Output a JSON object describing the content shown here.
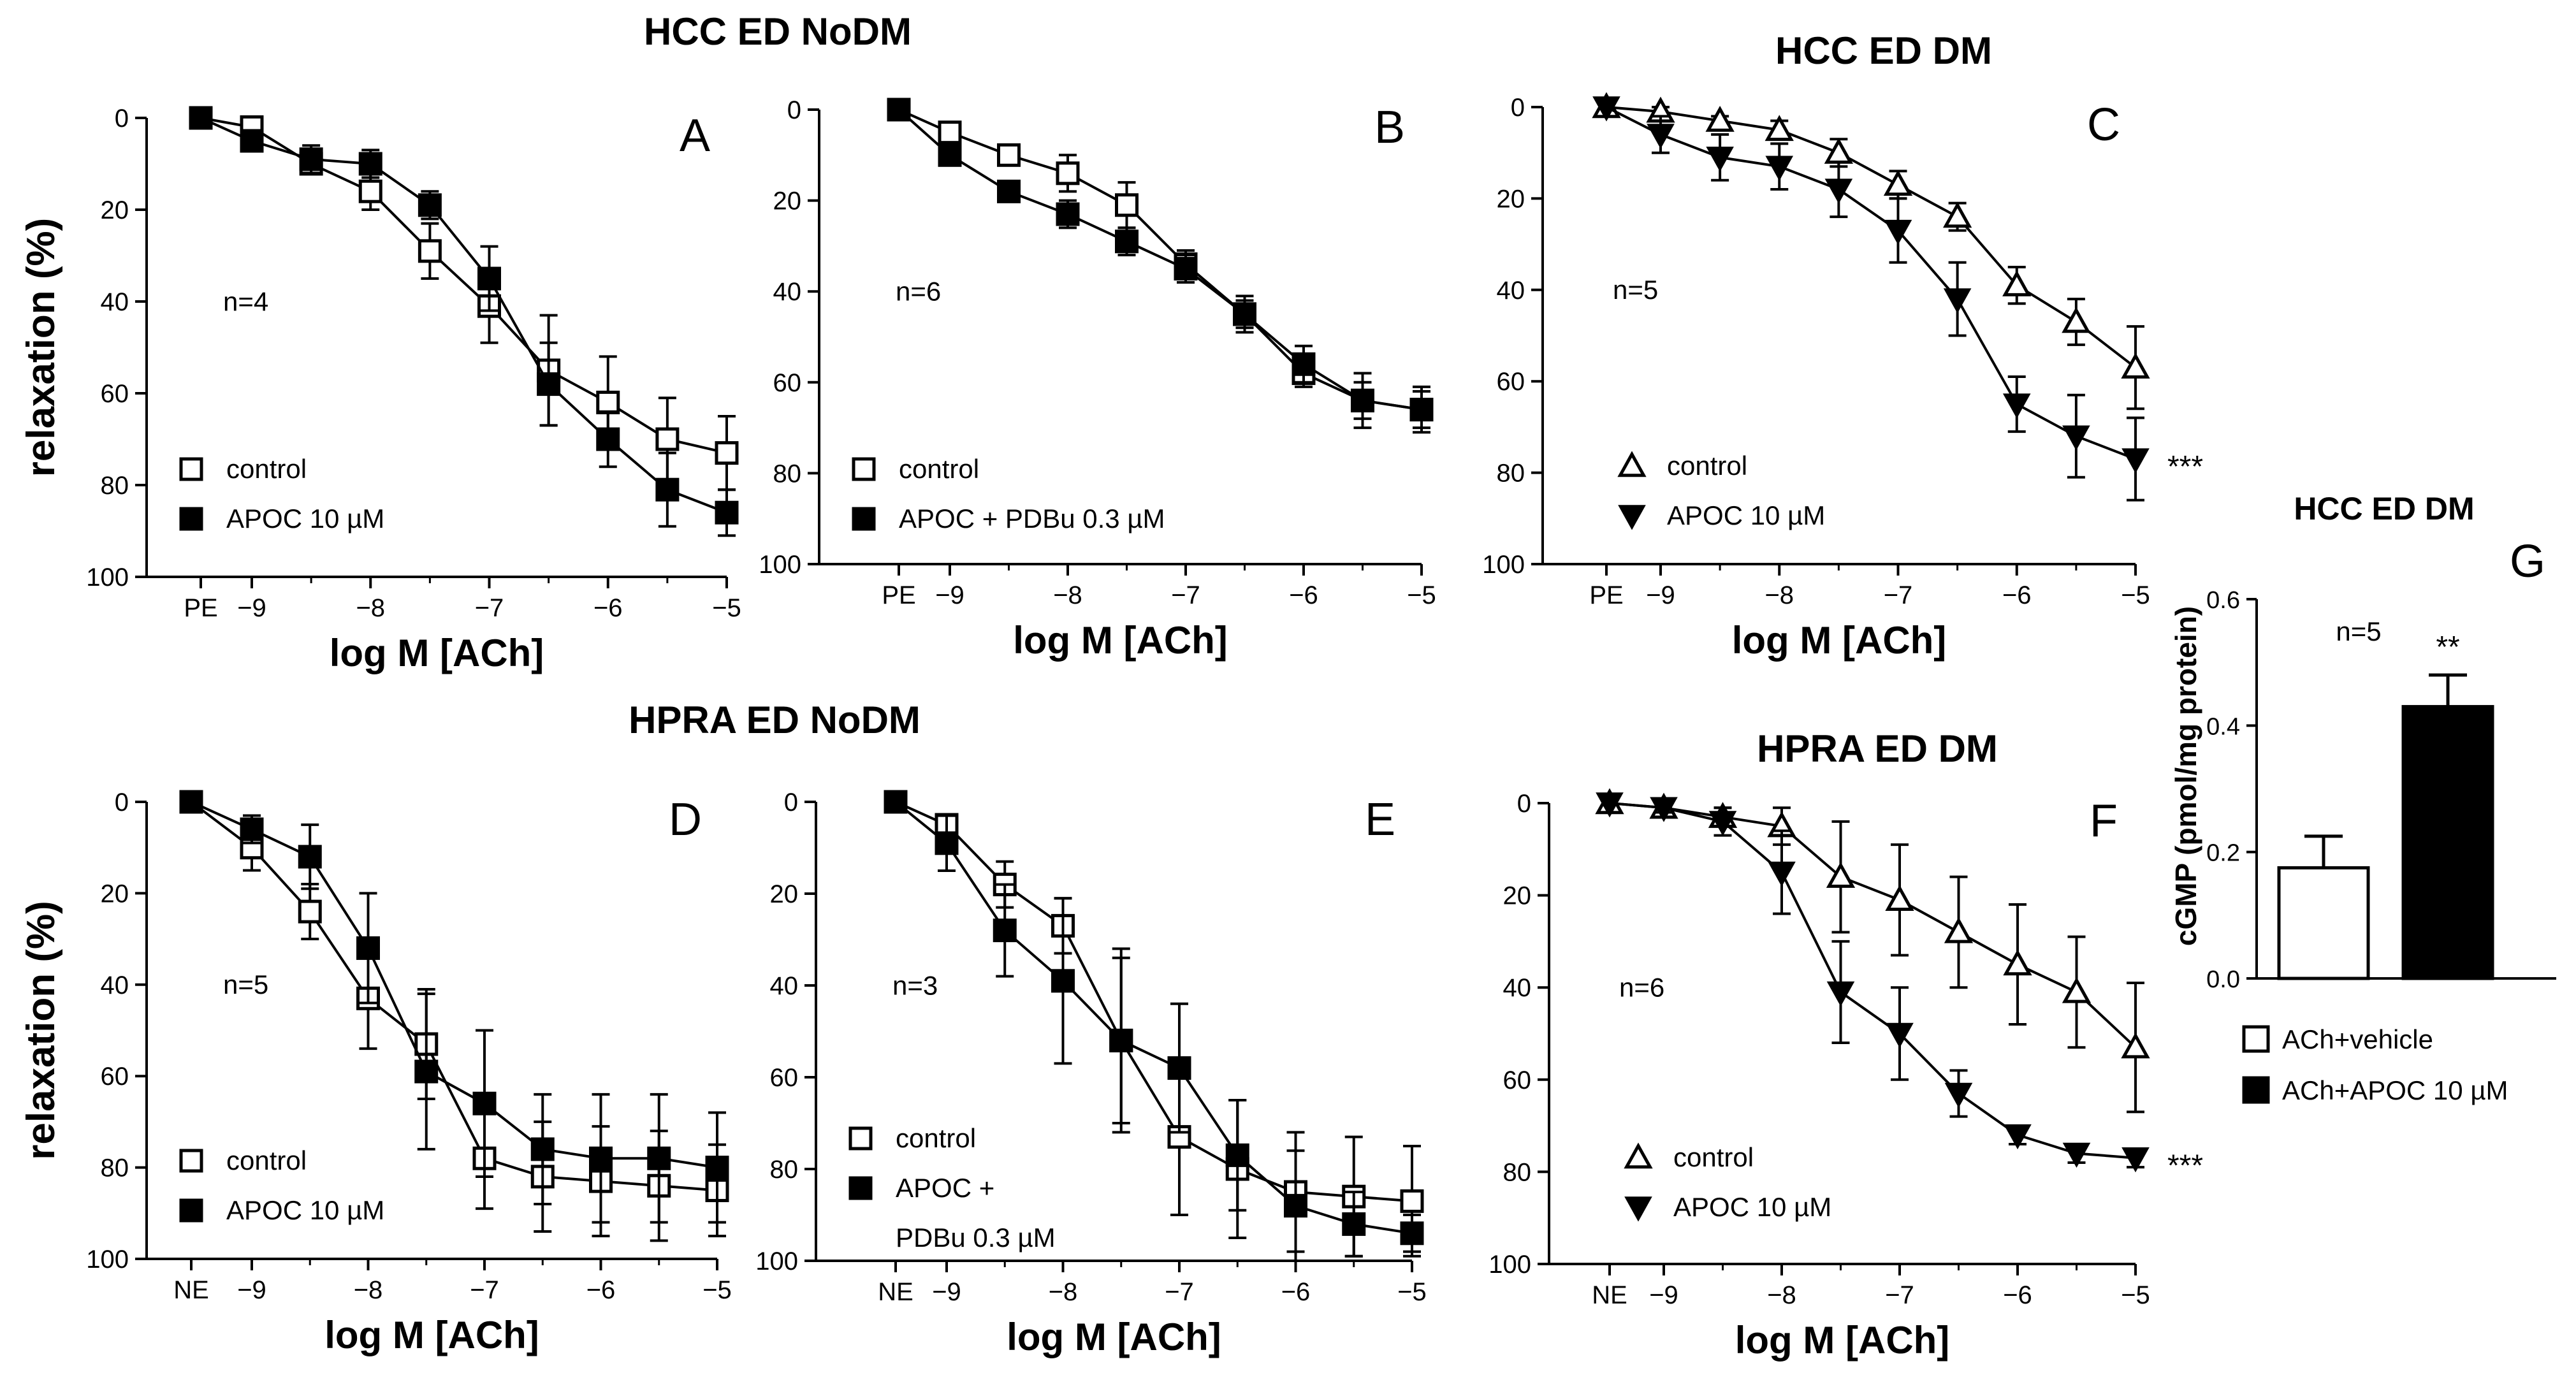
{
  "headers": {
    "hcc_nodm": "HCC ED NoDM",
    "hcc_dm": "HCC ED DM",
    "hpra_nodm": "HPRA ED NoDM",
    "hpra_dm": "HPRA ED DM",
    "g_title": "HCC ED DM"
  },
  "chart_data": [
    {
      "id": "A",
      "type": "line",
      "letter": "A",
      "n_label": "n=4",
      "ylabel": "relaxation (%)",
      "xlabel": "log M [ACh]",
      "ylim": [
        0,
        100
      ],
      "yticks": [
        "0",
        "20",
        "40",
        "60",
        "80",
        "100"
      ],
      "xticks": [
        "PE",
        "−9",
        "−8",
        "−7",
        "−6",
        "−5"
      ],
      "x": [
        "PE",
        -9,
        -8.5,
        -8,
        -7.5,
        -7,
        -6.5,
        -6,
        -5.5,
        -5
      ],
      "series": [
        {
          "name": "control",
          "marker": "open-square",
          "values": [
            0,
            2,
            10,
            16,
            29,
            41,
            55,
            62,
            70,
            73
          ],
          "errors": [
            0,
            1,
            2,
            4,
            6,
            8,
            12,
            10,
            9,
            8
          ]
        },
        {
          "name": "APOC 10 µM",
          "marker": "filled-square",
          "values": [
            0,
            5,
            9,
            10,
            19,
            35,
            58,
            70,
            81,
            86
          ],
          "errors": [
            0,
            1,
            3,
            3,
            3,
            7,
            9,
            6,
            8,
            5
          ]
        }
      ],
      "legend": [
        "control",
        "APOC 10 µM"
      ],
      "extra": ""
    },
    {
      "id": "B",
      "type": "line",
      "letter": "B",
      "n_label": "n=6",
      "ylabel": "",
      "xlabel": "log M [ACh]",
      "ylim": [
        0,
        100
      ],
      "yticks": [
        "0",
        "20",
        "40",
        "60",
        "80",
        "100"
      ],
      "xticks": [
        "PE",
        "−9",
        "−8",
        "−7",
        "−6",
        "−5"
      ],
      "x": [
        "PE",
        -9,
        -8.5,
        -8,
        -7.5,
        -7,
        -6.5,
        -6,
        -5.5,
        -5
      ],
      "series": [
        {
          "name": "control",
          "marker": "open-square",
          "values": [
            0,
            5,
            10,
            14,
            21,
            34,
            45,
            58,
            64,
            66
          ],
          "errors": [
            0,
            1,
            2,
            4,
            5,
            3,
            4,
            3,
            6,
            5
          ]
        },
        {
          "name": "APOC + PDBu 0.3 µM",
          "marker": "filled-square",
          "values": [
            0,
            10,
            18,
            23,
            29,
            35,
            45,
            56,
            64,
            66
          ],
          "errors": [
            0,
            2,
            2,
            3,
            3,
            3,
            3,
            4,
            4,
            4
          ]
        }
      ],
      "legend": [
        "control",
        "APOC + PDBu 0.3 µM"
      ],
      "extra": ""
    },
    {
      "id": "C",
      "type": "line",
      "letter": "C",
      "n_label": "n=5",
      "ylabel": "",
      "xlabel": "log M [ACh]",
      "ylim": [
        0,
        100
      ],
      "yticks": [
        "0",
        "20",
        "40",
        "60",
        "80",
        "100"
      ],
      "xticks": [
        "PE",
        "−9",
        "−8",
        "−7",
        "−6",
        "−5"
      ],
      "x": [
        "PE",
        -9,
        -8.5,
        -8,
        -7.5,
        -7,
        -6.5,
        -6,
        -5.5,
        -5
      ],
      "series": [
        {
          "name": "control",
          "marker": "open-triangle-up",
          "values": [
            0,
            1,
            3,
            5,
            10,
            17,
            24,
            39,
            47,
            57
          ],
          "errors": [
            0,
            1,
            1,
            2,
            3,
            3,
            3,
            4,
            5,
            9
          ]
        },
        {
          "name": "APOC 10 µM",
          "marker": "filled-triangle-down",
          "values": [
            0,
            6,
            11,
            13,
            18,
            27,
            42,
            65,
            72,
            77
          ],
          "errors": [
            0,
            4,
            5,
            5,
            6,
            7,
            8,
            6,
            9,
            9
          ]
        }
      ],
      "legend": [
        "control",
        "APOC 10 µM"
      ],
      "extra": "***"
    },
    {
      "id": "D",
      "type": "line",
      "letter": "D",
      "n_label": "n=5",
      "ylabel": "relaxation (%)",
      "xlabel": "log M [ACh]",
      "ylim": [
        0,
        100
      ],
      "yticks": [
        "0",
        "20",
        "40",
        "60",
        "80",
        "100"
      ],
      "xticks": [
        "NE",
        "−9",
        "−8",
        "−7",
        "−6",
        "−5"
      ],
      "x": [
        "NE",
        -9,
        -8.5,
        -8,
        -7.5,
        -7,
        -6.5,
        -6,
        -5.5,
        -5
      ],
      "series": [
        {
          "name": "control",
          "marker": "open-square",
          "values": [
            0,
            10,
            24,
            43,
            53,
            78,
            82,
            83,
            84,
            85
          ],
          "errors": [
            0,
            5,
            6,
            11,
            12,
            11,
            12,
            12,
            12,
            10
          ]
        },
        {
          "name": "APOC 10 µM",
          "marker": "filled-square",
          "values": [
            0,
            6,
            12,
            32,
            59,
            66,
            76,
            78,
            78,
            80
          ],
          "errors": [
            0,
            3,
            7,
            12,
            17,
            16,
            12,
            14,
            14,
            12
          ]
        }
      ],
      "legend": [
        "control",
        "APOC 10 µM"
      ],
      "extra": ""
    },
    {
      "id": "E",
      "type": "line",
      "letter": "E",
      "n_label": "n=3",
      "ylabel": "",
      "xlabel": "log M [ACh]",
      "ylim": [
        0,
        100
      ],
      "yticks": [
        "0",
        "20",
        "40",
        "60",
        "80",
        "100"
      ],
      "xticks": [
        "NE",
        "−9",
        "−8",
        "−7",
        "−6",
        "−5"
      ],
      "x": [
        "NE",
        -9,
        -8.5,
        -8,
        -7.5,
        -7,
        -6.5,
        -6,
        -5.5,
        -5
      ],
      "series": [
        {
          "name": "control",
          "marker": "open-square",
          "values": [
            0,
            5,
            18,
            27,
            52,
            73,
            80,
            85,
            86,
            87
          ],
          "errors": [
            0,
            2,
            5,
            6,
            20,
            17,
            15,
            13,
            13,
            12
          ]
        },
        {
          "name": "APOC + PDBu 0.3 µM",
          "marker": "filled-square",
          "values": [
            0,
            9,
            28,
            39,
            52,
            58,
            77,
            88,
            92,
            94
          ],
          "errors": [
            0,
            6,
            10,
            18,
            18,
            14,
            12,
            12,
            7,
            4
          ]
        }
      ],
      "legend": [
        "control",
        "APOC +",
        "PDBu 0.3 µM"
      ],
      "extra": ""
    },
    {
      "id": "F",
      "type": "line",
      "letter": "F",
      "n_label": "n=6",
      "ylabel": "",
      "xlabel": "log M [ACh]",
      "ylim": [
        0,
        100
      ],
      "yticks": [
        "0",
        "20",
        "40",
        "60",
        "80",
        "100"
      ],
      "xticks": [
        "NE",
        "−9",
        "−8",
        "−7",
        "−6",
        "−5"
      ],
      "x": [
        "NE",
        -9,
        -8.5,
        -8,
        -7.5,
        -7,
        -6.5,
        -6,
        -5.5,
        -5
      ],
      "series": [
        {
          "name": "control",
          "marker": "open-triangle-up",
          "values": [
            0,
            1,
            3,
            5,
            16,
            21,
            28,
            35,
            41,
            53
          ],
          "errors": [
            0,
            1,
            2,
            4,
            12,
            12,
            12,
            13,
            12,
            14
          ]
        },
        {
          "name": "APOC 10 µM",
          "marker": "filled-triangle-down",
          "values": [
            0,
            1,
            4,
            15,
            41,
            50,
            63,
            72,
            76,
            77
          ],
          "errors": [
            0,
            1,
            3,
            9,
            11,
            10,
            5,
            2,
            2,
            2
          ]
        }
      ],
      "legend": [
        "control",
        "APOC 10 µM"
      ],
      "extra": "***"
    },
    {
      "id": "G",
      "type": "bar",
      "letter": "G",
      "n_label": "n=5",
      "title": "HCC ED DM",
      "ylabel": "cGMP (pmol/mg protein)",
      "ylim": [
        0,
        0.6
      ],
      "yticks": [
        "0.0",
        "0.2",
        "0.4",
        "0.6"
      ],
      "categories": [
        "ACh+vehicle",
        "ACh+APOC 10 µM"
      ],
      "values": [
        0.175,
        0.43
      ],
      "errors": [
        0.05,
        0.05
      ],
      "significance": [
        "",
        "**"
      ],
      "legend": [
        "ACh+vehicle",
        "ACh+APOC 10 µM"
      ]
    }
  ]
}
